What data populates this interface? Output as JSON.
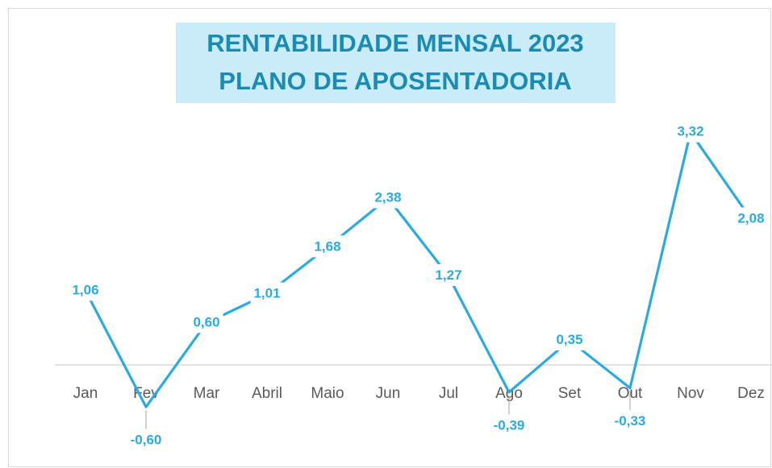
{
  "chart_data": {
    "type": "line",
    "title": [
      "RENTABILIDADE MENSAL 2023",
      "PLANO DE APOSENTADORIA"
    ],
    "categories": [
      "Jan",
      "Fev",
      "Mar",
      "Abril",
      "Maio",
      "Jun",
      "Jul",
      "Ago",
      "Set",
      "Out",
      "Nov",
      "Dez"
    ],
    "values": [
      1.06,
      -0.6,
      0.6,
      1.01,
      1.68,
      2.38,
      1.27,
      -0.39,
      0.35,
      -0.33,
      3.32,
      2.08
    ],
    "value_labels": [
      "1,06",
      "-0,60",
      "0,60",
      "1,01",
      "1,68",
      "2,38",
      "1,27",
      "-0,39",
      "0,35",
      "-0,33",
      "3,32",
      "2,08"
    ],
    "color": "#29abe2",
    "ylim": [
      -1,
      4
    ]
  }
}
